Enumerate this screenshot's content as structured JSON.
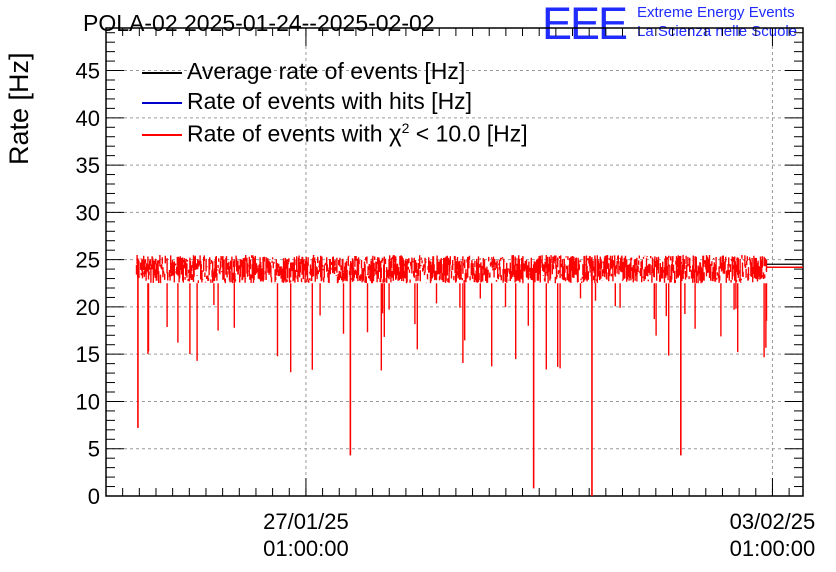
{
  "title": "POLA-02 2025-01-24--2025-02-02",
  "logo": {
    "mark": "EEE",
    "line1": "Extreme Energy Events",
    "line2": "La Scienza nelle Scuole",
    "color": "#1f2bff"
  },
  "chart_data": {
    "type": "line",
    "ylabel": "Rate [Hz]",
    "xlabel": "",
    "ylim": [
      0,
      49.5
    ],
    "yticks": [
      0,
      5,
      10,
      15,
      20,
      25,
      30,
      35,
      40,
      45
    ],
    "xlim": [
      "2025-01-24 01:00:00",
      "2025-02-03 12:00:00"
    ],
    "xticks": [
      {
        "date": "27/01/25",
        "time": "01:00:00"
      },
      {
        "date": "03/02/25",
        "time": "01:00:00"
      }
    ],
    "grid": true,
    "legend_position": "top-left",
    "series": [
      {
        "name": "Average rate of events [Hz]",
        "color": "#000000",
        "values": [
          24.3,
          24.3
        ]
      },
      {
        "name": "Rate of events with hits [Hz]",
        "color": "#0000cc",
        "values": []
      },
      {
        "name": "Rate of events with χ² < 10.0 [Hz]",
        "name_main": "Rate of events with ",
        "name_chi": "χ",
        "name_sup": "2",
        "name_rest": " < 10.0 [Hz]",
        "color": "#ff0000",
        "x_start": "2025-01-24 12:00:00",
        "x_end": "2025-02-02 23:00:00",
        "typical_range": [
          22.5,
          25.5
        ],
        "spikes": [
          {
            "x": "2025-01-24 12:30:00",
            "y": 7.2
          },
          {
            "x": "2025-01-27 17:00:00",
            "y": 4.3
          },
          {
            "x": "2025-01-30 11:00:00",
            "y": 0.8
          },
          {
            "x": "2025-01-31 08:00:00",
            "y": 0.0
          },
          {
            "x": "2025-02-01 16:00:00",
            "y": 4.3
          }
        ]
      }
    ]
  }
}
